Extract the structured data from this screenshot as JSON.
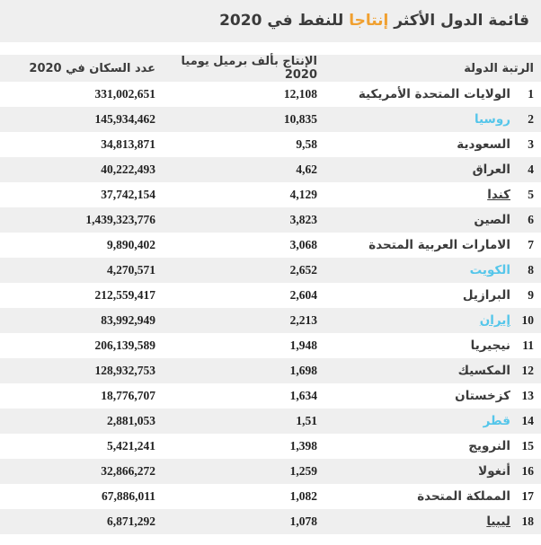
{
  "page": {
    "title_parts": {
      "before": "قائمة الدول الأكثر ",
      "highlight": "إنتاجا",
      "after": " للنفط في 2020"
    }
  },
  "colors": {
    "accent_orange": "#f0a030",
    "link_cyan": "#55c6ea",
    "row_stripe": "#efefef",
    "text_dark": "#3b3b3b"
  },
  "table": {
    "headers": {
      "rank_country": "الرتبة الدولة",
      "production": "الإنتاج بألف برميل يوميا 2020",
      "population": "عدد السكان في 2020"
    },
    "rows": [
      {
        "rank": "1",
        "country": "الولايات المتحدة الأمريكية",
        "production": "12,108",
        "population": "331,002,651",
        "link": "none"
      },
      {
        "rank": "2",
        "country": "روسيا",
        "production": "10,835",
        "population": "145,934,462",
        "link": "cyan"
      },
      {
        "rank": "3",
        "country": "السعودية",
        "production": "9,58",
        "population": "34,813,871",
        "link": "none"
      },
      {
        "rank": "4",
        "country": "العراق",
        "production": "4,62",
        "population": "40,222,493",
        "link": "none"
      },
      {
        "rank": "5",
        "country": "كندا",
        "production": "4,129",
        "population": "37,742,154",
        "link": "dark-underline"
      },
      {
        "rank": "6",
        "country": "الصين",
        "production": "3,823",
        "population": "1,439,323,776",
        "link": "none"
      },
      {
        "rank": "7",
        "country": "الامارات العربية المتحدة",
        "production": "3,068",
        "population": "9,890,402",
        "link": "none"
      },
      {
        "rank": "8",
        "country": "الكويت",
        "production": "2,652",
        "population": "4,270,571",
        "link": "cyan"
      },
      {
        "rank": "9",
        "country": "البرازيل",
        "production": "2,604",
        "population": "212,559,417",
        "link": "none"
      },
      {
        "rank": "10",
        "country": "إيران",
        "production": "2,213",
        "population": "83,992,949",
        "link": "cyan-underline"
      },
      {
        "rank": "11",
        "country": "نيجيريا",
        "production": "1,948",
        "population": "206,139,589",
        "link": "none"
      },
      {
        "rank": "12",
        "country": "المكسيك",
        "production": "1,698",
        "population": "128,932,753",
        "link": "none"
      },
      {
        "rank": "13",
        "country": "كزخستان",
        "production": "1,634",
        "population": "18,776,707",
        "link": "none"
      },
      {
        "rank": "14",
        "country": "قطر",
        "production": "1,51",
        "population": "2,881,053",
        "link": "cyan"
      },
      {
        "rank": "15",
        "country": "النرويج",
        "production": "1,398",
        "population": "5,421,241",
        "link": "none"
      },
      {
        "rank": "16",
        "country": "أنغولا",
        "production": "1,259",
        "population": "32,866,272",
        "link": "none"
      },
      {
        "rank": "17",
        "country": "المملكة المتحدة",
        "production": "1,082",
        "population": "67,886,011",
        "link": "none"
      },
      {
        "rank": "18",
        "country": "ليبيا",
        "production": "1,078",
        "population": "6,871,292",
        "link": "dark-underline"
      }
    ]
  }
}
